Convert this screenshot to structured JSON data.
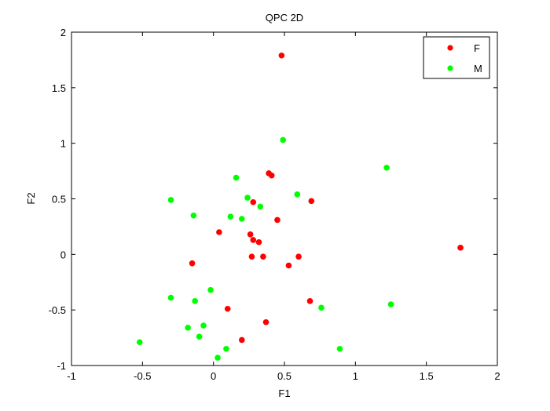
{
  "chart_data": {
    "type": "scatter",
    "title": "QPC 2D",
    "xlabel": "F1",
    "ylabel": "F2",
    "xlim": [
      -1,
      2
    ],
    "ylim": [
      -1,
      2
    ],
    "xticks": [
      -1,
      -0.5,
      0,
      0.5,
      1,
      1.5,
      2
    ],
    "xtick_labels": [
      "-1",
      "-0.5",
      "0",
      "0.5",
      "1",
      "1.5",
      "2"
    ],
    "yticks": [
      -1,
      -0.5,
      0,
      0.5,
      1,
      1.5,
      2
    ],
    "ytick_labels": [
      "-1",
      "-0.5",
      "0",
      "0.5",
      "1",
      "1.5",
      "2"
    ],
    "grid": false,
    "legend_position": "top-right",
    "series": [
      {
        "name": "F",
        "color": "#ff0000",
        "points": [
          [
            0.48,
            1.79
          ],
          [
            0.39,
            0.73
          ],
          [
            0.41,
            0.71
          ],
          [
            0.28,
            0.47
          ],
          [
            0.69,
            0.48
          ],
          [
            0.45,
            0.31
          ],
          [
            0.04,
            0.2
          ],
          [
            0.26,
            0.18
          ],
          [
            0.28,
            0.13
          ],
          [
            0.32,
            0.11
          ],
          [
            1.74,
            0.06
          ],
          [
            -0.15,
            -0.08
          ],
          [
            0.27,
            -0.02
          ],
          [
            0.35,
            -0.02
          ],
          [
            0.6,
            -0.02
          ],
          [
            0.53,
            -0.1
          ],
          [
            0.1,
            -0.49
          ],
          [
            0.68,
            -0.42
          ],
          [
            0.37,
            -0.61
          ],
          [
            0.2,
            -0.77
          ]
        ]
      },
      {
        "name": "M",
        "color": "#00ff00",
        "points": [
          [
            0.49,
            1.03
          ],
          [
            1.22,
            0.78
          ],
          [
            0.16,
            0.69
          ],
          [
            -0.3,
            0.49
          ],
          [
            0.24,
            0.51
          ],
          [
            0.59,
            0.54
          ],
          [
            -0.14,
            0.35
          ],
          [
            0.12,
            0.34
          ],
          [
            0.2,
            0.32
          ],
          [
            0.33,
            0.43
          ],
          [
            -0.3,
            -0.39
          ],
          [
            -0.13,
            -0.42
          ],
          [
            -0.02,
            -0.32
          ],
          [
            0.76,
            -0.48
          ],
          [
            1.25,
            -0.45
          ],
          [
            -0.18,
            -0.66
          ],
          [
            -0.07,
            -0.64
          ],
          [
            -0.1,
            -0.74
          ],
          [
            0.09,
            -0.85
          ],
          [
            0.89,
            -0.85
          ],
          [
            0.03,
            -0.93
          ],
          [
            -0.52,
            -0.79
          ]
        ]
      }
    ]
  }
}
